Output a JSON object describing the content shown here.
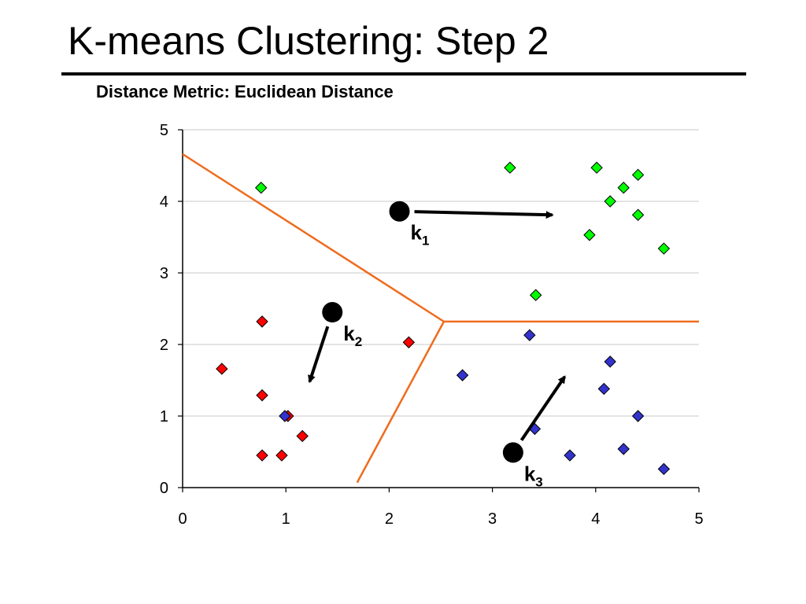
{
  "slide": {
    "title": "K-means Clustering: Step 2",
    "subtitle": "Distance Metric: Euclidean Distance"
  },
  "chart_data": {
    "type": "scatter",
    "xlim": [
      0,
      5
    ],
    "ylim": [
      0,
      5
    ],
    "x_ticks": [
      "0",
      "1",
      "2",
      "3",
      "4",
      "5"
    ],
    "y_ticks": [
      "0",
      "1",
      "2",
      "3",
      "4",
      "5"
    ],
    "grid": "horizontal",
    "colors": {
      "cluster_1": "#00ff00",
      "cluster_2": "#ff0000",
      "cluster_3": "#3333cc",
      "boundary": "#ef6c1f",
      "axis": "#000000",
      "grid": "#c8c8c8"
    },
    "series": [
      {
        "color": "#00ff00",
        "points": [
          {
            "x": 0.76,
            "y": 4.19
          },
          {
            "x": 3.17,
            "y": 4.47
          },
          {
            "x": 4.01,
            "y": 4.47
          },
          {
            "x": 4.41,
            "y": 4.37
          },
          {
            "x": 4.27,
            "y": 4.19
          },
          {
            "x": 4.14,
            "y": 4.0
          },
          {
            "x": 4.41,
            "y": 3.81
          },
          {
            "x": 3.94,
            "y": 3.53
          },
          {
            "x": 4.66,
            "y": 3.34
          },
          {
            "x": 3.42,
            "y": 2.69
          }
        ]
      },
      {
        "color": "#ff0000",
        "points": [
          {
            "x": 0.77,
            "y": 2.32
          },
          {
            "x": 2.19,
            "y": 2.03
          },
          {
            "x": 0.38,
            "y": 1.66
          },
          {
            "x": 0.77,
            "y": 1.29
          },
          {
            "x": 1.02,
            "y": 1.0
          },
          {
            "x": 1.16,
            "y": 0.72
          },
          {
            "x": 0.77,
            "y": 0.45
          },
          {
            "x": 0.96,
            "y": 0.45
          }
        ]
      },
      {
        "color": "#3333cc",
        "points": [
          {
            "x": 3.36,
            "y": 2.13
          },
          {
            "x": 2.71,
            "y": 1.57
          },
          {
            "x": 4.14,
            "y": 1.76
          },
          {
            "x": 4.08,
            "y": 1.38
          },
          {
            "x": 4.41,
            "y": 1.0
          },
          {
            "x": 0.99,
            "y": 1.0
          },
          {
            "x": 3.41,
            "y": 0.82
          },
          {
            "x": 3.75,
            "y": 0.45
          },
          {
            "x": 4.27,
            "y": 0.54
          },
          {
            "x": 4.66,
            "y": 0.26
          }
        ]
      }
    ],
    "boundaries": [
      [
        {
          "x": 0.0,
          "y": 4.66
        },
        {
          "x": 2.53,
          "y": 2.32
        }
      ],
      [
        {
          "x": 2.53,
          "y": 2.32
        },
        {
          "x": 5.0,
          "y": 2.32
        }
      ],
      [
        {
          "x": 2.53,
          "y": 2.32
        },
        {
          "x": 1.69,
          "y": 0.07
        }
      ]
    ],
    "centroids": [
      {
        "label": "k",
        "subscript": "1",
        "x": 2.1,
        "y": 3.86,
        "arrow_to": {
          "x": 3.58,
          "y": 3.81
        },
        "label_offset": [
          14,
          36
        ]
      },
      {
        "label": "k",
        "subscript": "2",
        "x": 1.45,
        "y": 2.45,
        "arrow_to": {
          "x": 1.23,
          "y": 1.48
        },
        "label_offset": [
          14,
          36
        ]
      },
      {
        "label": "k",
        "subscript": "3",
        "x": 3.2,
        "y": 0.49,
        "arrow_to": {
          "x": 3.7,
          "y": 1.55
        },
        "label_offset": [
          14,
          36
        ]
      }
    ]
  }
}
